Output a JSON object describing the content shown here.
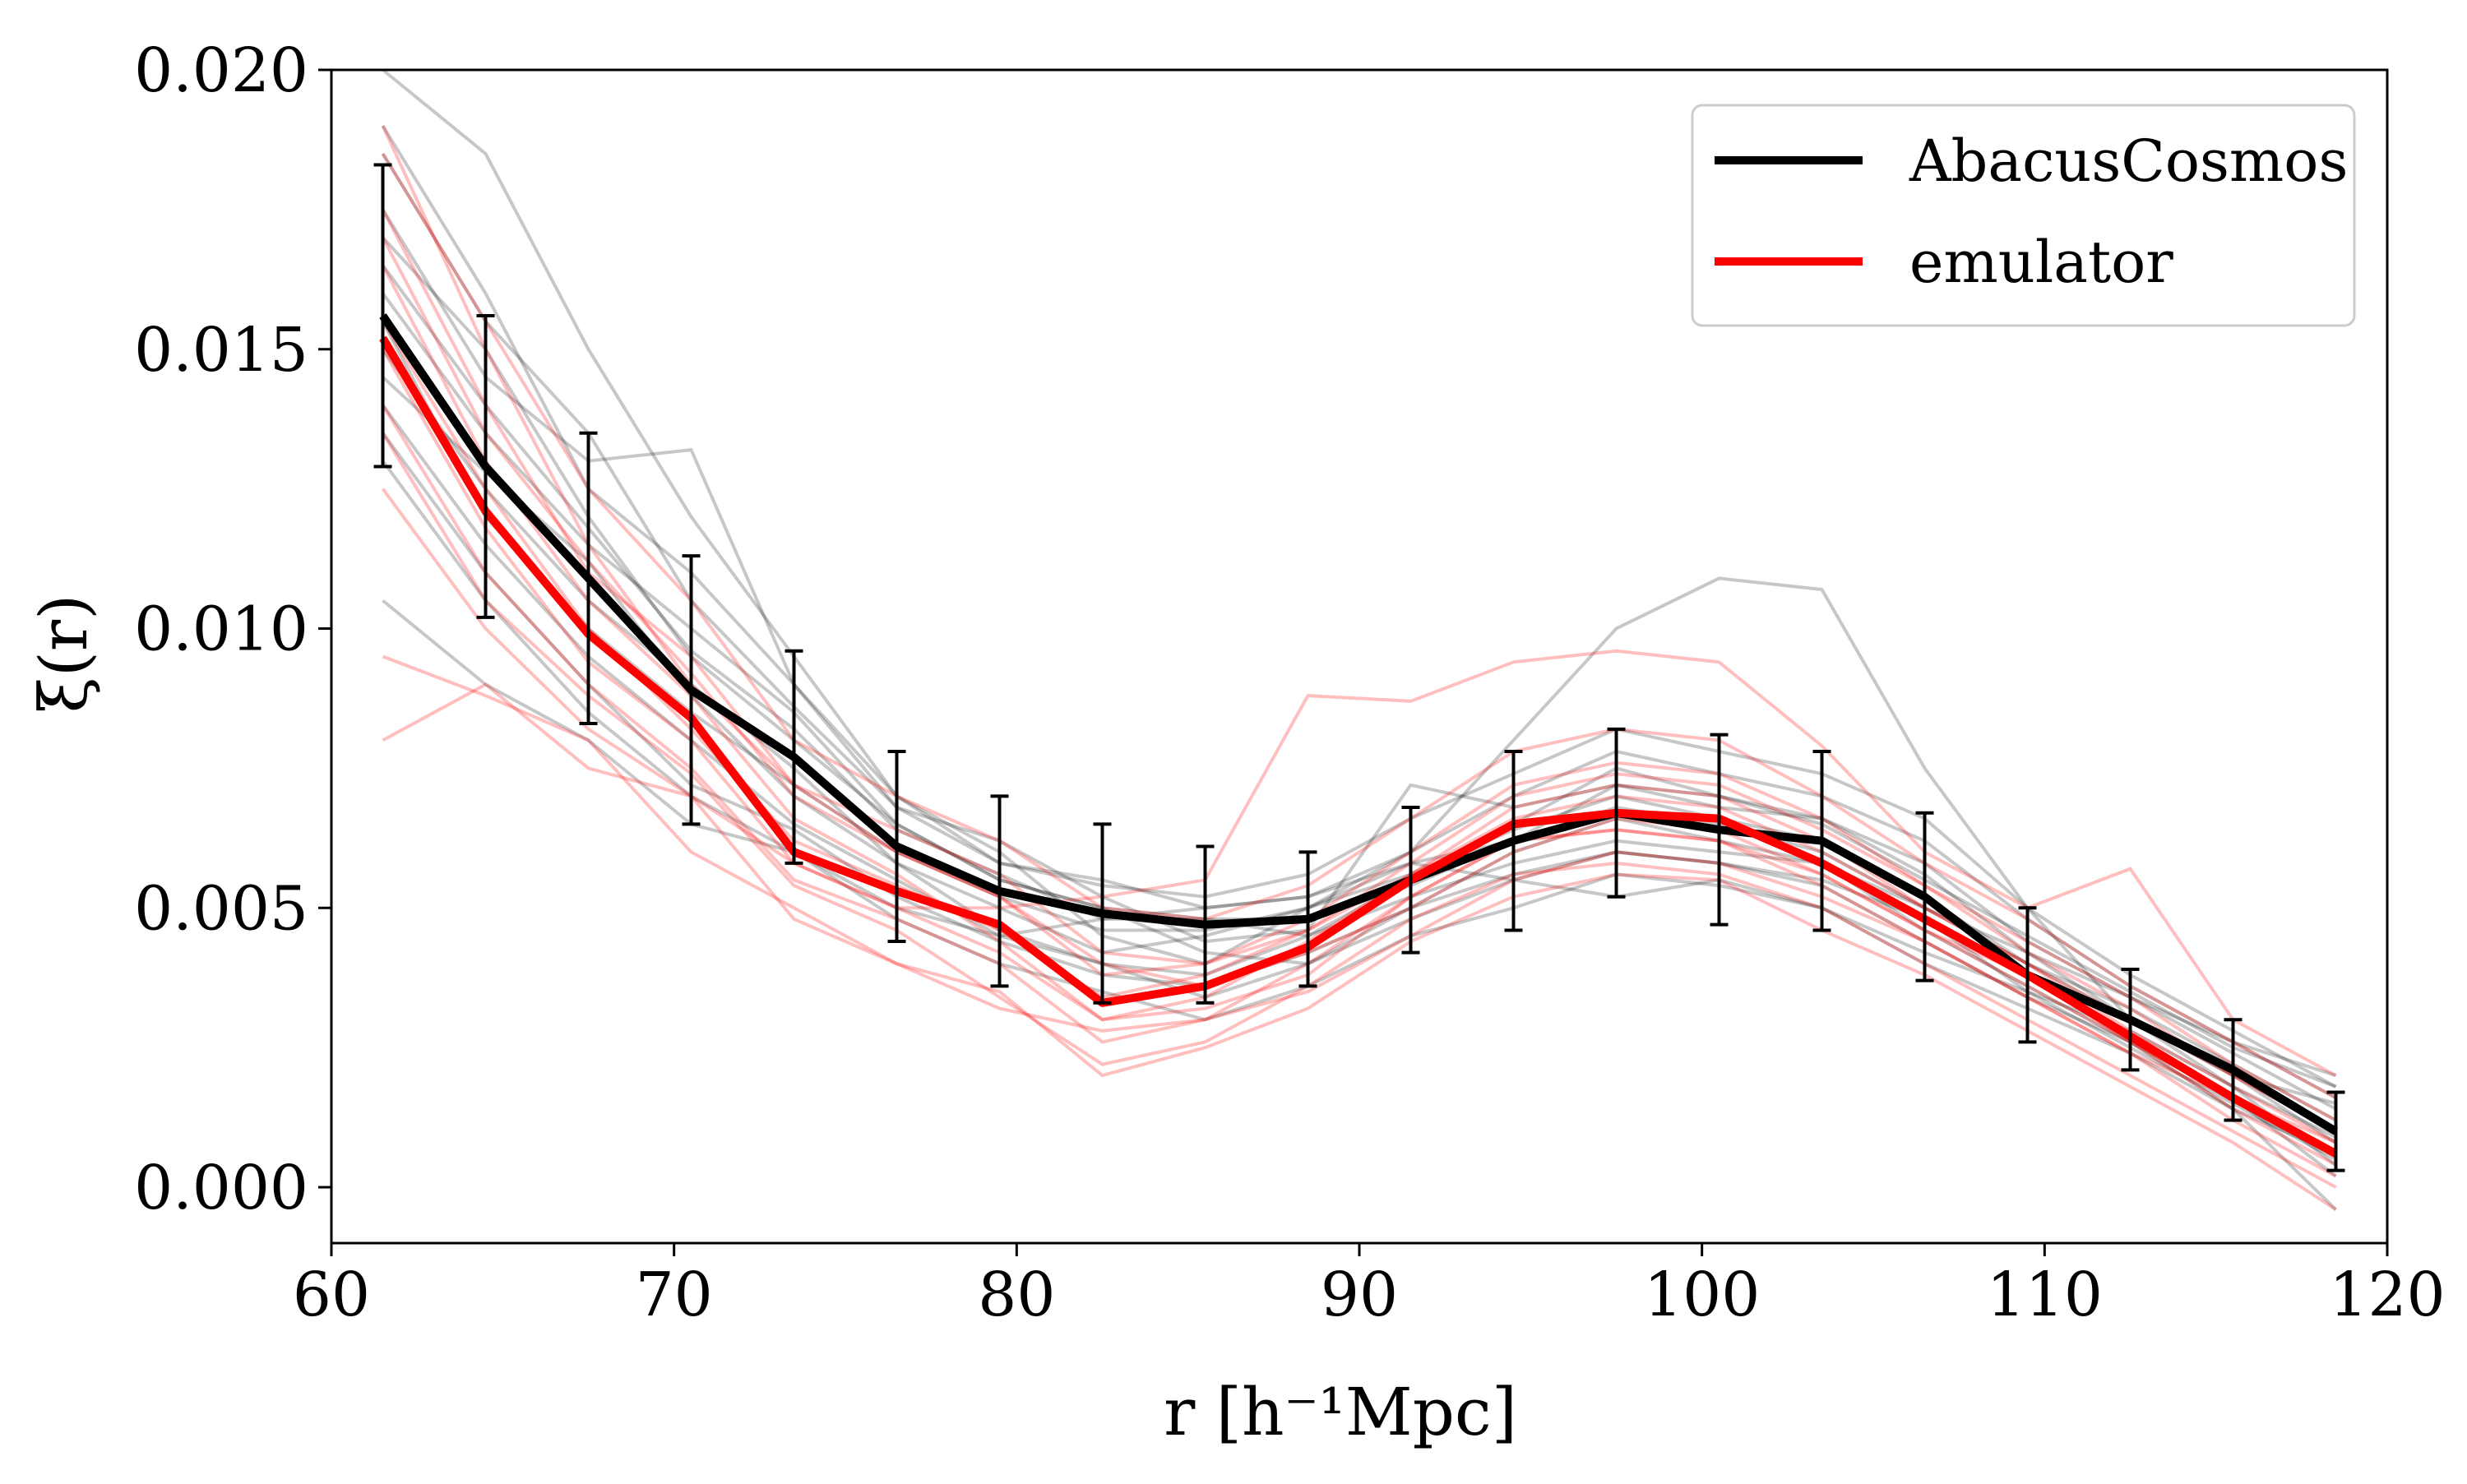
{
  "chart_data": {
    "type": "line",
    "xlabel": "r [h⁻¹Mpc]",
    "ylabel": "ξ(r)",
    "xlim": [
      60,
      120
    ],
    "ylim": [
      -0.001,
      0.02
    ],
    "x_ticks": [
      60,
      70,
      80,
      90,
      100,
      110,
      120
    ],
    "x_tick_labels": [
      "60",
      "70",
      "80",
      "90",
      "100",
      "110",
      "120"
    ],
    "y_ticks": [
      0.0,
      0.005,
      0.01,
      0.015,
      0.02
    ],
    "y_tick_labels": [
      "0.000",
      "0.005",
      "0.010",
      "0.015",
      "0.020"
    ],
    "legend_position": "top-right",
    "x": [
      61.5,
      64.5,
      67.5,
      70.5,
      73.5,
      76.5,
      79.5,
      82.5,
      85.5,
      88.5,
      91.5,
      94.5,
      97.5,
      100.5,
      103.5,
      106.5,
      109.5,
      112.5,
      115.5,
      118.5
    ],
    "series": [
      {
        "name": "AbacusCosmos",
        "color": "#000000",
        "values": [
          0.0156,
          0.0129,
          0.0109,
          0.0089,
          0.0077,
          0.0061,
          0.0053,
          0.0049,
          0.0047,
          0.0048,
          0.0055,
          0.0062,
          0.0067,
          0.0064,
          0.0062,
          0.0052,
          0.0038,
          0.003,
          0.0021,
          0.001
        ],
        "error": [
          0.0027,
          0.0027,
          0.0026,
          0.0024,
          0.0019,
          0.0017,
          0.0017,
          0.0016,
          0.0014,
          0.0012,
          0.0013,
          0.0016,
          0.0015,
          0.0017,
          0.0016,
          0.0015,
          0.0012,
          0.0009,
          0.0009,
          0.0007
        ]
      },
      {
        "name": "emulator",
        "color": "#ff0000",
        "values": [
          0.0152,
          0.0121,
          0.0099,
          0.0084,
          0.006,
          0.0053,
          0.0047,
          0.0033,
          0.0036,
          0.0043,
          0.0055,
          0.0065,
          0.0067,
          0.0066,
          0.0058,
          0.0048,
          0.0038,
          0.0027,
          0.0016,
          0.0006
        ]
      }
    ],
    "realizations": {
      "description": "individual faint curves",
      "gray_color": "#000000",
      "red_color": "#ff0000",
      "gray": [
        [
          0.02,
          0.0185,
          0.015,
          0.012,
          0.0095,
          0.007,
          0.006,
          0.0045,
          0.004,
          0.005,
          0.006,
          0.008,
          0.01,
          0.0109,
          0.0107,
          0.0075,
          0.005,
          0.003,
          0.002,
          0.0015
        ],
        [
          0.017,
          0.015,
          0.012,
          0.0095,
          0.008,
          0.0065,
          0.0055,
          0.005,
          0.0048,
          0.0045,
          0.0055,
          0.0065,
          0.0075,
          0.007,
          0.0065,
          0.0055,
          0.0045,
          0.0035,
          0.0025,
          0.0018
        ],
        [
          0.015,
          0.0125,
          0.0105,
          0.009,
          0.0075,
          0.0058,
          0.005,
          0.0042,
          0.0045,
          0.005,
          0.0058,
          0.0062,
          0.0068,
          0.0065,
          0.006,
          0.005,
          0.004,
          0.0032,
          0.0022,
          0.0012
        ],
        [
          0.016,
          0.0135,
          0.0115,
          0.01,
          0.0085,
          0.0065,
          0.0055,
          0.005,
          0.0042,
          0.004,
          0.0048,
          0.0055,
          0.006,
          0.0058,
          0.0055,
          0.0048,
          0.0035,
          0.0025,
          0.0015,
          0.0005
        ],
        [
          0.014,
          0.0115,
          0.0095,
          0.008,
          0.0065,
          0.0055,
          0.0045,
          0.004,
          0.0038,
          0.0045,
          0.0052,
          0.0058,
          0.0062,
          0.006,
          0.0058,
          0.005,
          0.0042,
          0.003,
          0.002,
          0.0008
        ],
        [
          0.0105,
          0.009,
          0.008,
          0.0065,
          0.006,
          0.005,
          0.0045,
          0.0048,
          0.005,
          0.0052,
          0.0058,
          0.0055,
          0.0052,
          0.0055,
          0.005,
          0.004,
          0.0032,
          0.0024,
          0.0014,
          0.0006
        ],
        [
          0.019,
          0.016,
          0.0125,
          0.011,
          0.009,
          0.007,
          0.0058,
          0.0055,
          0.005,
          0.0052,
          0.006,
          0.007,
          0.0078,
          0.0074,
          0.007,
          0.0062,
          0.0048,
          0.0036,
          0.0026,
          0.0016
        ],
        [
          0.013,
          0.0105,
          0.0085,
          0.007,
          0.006,
          0.0048,
          0.004,
          0.0035,
          0.003,
          0.0036,
          0.0045,
          0.005,
          0.0056,
          0.0054,
          0.005,
          0.0042,
          0.0035,
          0.0028,
          0.0018,
          0.0009
        ],
        [
          0.0175,
          0.0145,
          0.013,
          0.0132,
          0.009,
          0.0068,
          0.0062,
          0.0052,
          0.0044,
          0.0046,
          0.0072,
          0.0068,
          0.0072,
          0.0068,
          0.0066,
          0.0058,
          0.0044,
          0.0034,
          0.0024,
          0.0014
        ],
        [
          0.0155,
          0.012,
          0.01,
          0.0085,
          0.0072,
          0.006,
          0.0052,
          0.0046,
          0.0046,
          0.005,
          0.0056,
          0.0064,
          0.007,
          0.0066,
          0.0062,
          0.0052,
          0.004,
          0.003,
          0.0018,
          0.0004
        ],
        [
          0.0145,
          0.0128,
          0.0112,
          0.0088,
          0.007,
          0.0058,
          0.0046,
          0.004,
          0.0034,
          0.004,
          0.005,
          0.006,
          0.0066,
          0.0062,
          0.0058,
          0.0046,
          0.0036,
          0.0026,
          0.0016,
          0.0002
        ],
        [
          0.0165,
          0.014,
          0.0118,
          0.0096,
          0.0082,
          0.0064,
          0.0056,
          0.0048,
          0.0048,
          0.0048,
          0.0054,
          0.0062,
          0.0072,
          0.007,
          0.0066,
          0.0056,
          0.0042,
          0.0034,
          0.0026,
          0.002
        ],
        [
          0.0135,
          0.011,
          0.009,
          0.0072,
          0.0064,
          0.0052,
          0.0044,
          0.0038,
          0.0036,
          0.0042,
          0.005,
          0.0056,
          0.006,
          0.0058,
          0.0054,
          0.0044,
          0.0034,
          0.0026,
          0.0014,
          -0.0004
        ],
        [
          0.0185,
          0.0155,
          0.0135,
          0.0105,
          0.0086,
          0.0068,
          0.0058,
          0.0054,
          0.0052,
          0.0056,
          0.0066,
          0.0074,
          0.0082,
          0.0078,
          0.0074,
          0.0066,
          0.005,
          0.0038,
          0.0028,
          0.0018
        ]
      ],
      "red": [
        [
          0.008,
          0.009,
          0.0075,
          0.007,
          0.0058,
          0.005,
          0.005,
          0.0052,
          0.0055,
          0.0088,
          0.0087,
          0.0094,
          0.0096,
          0.0094,
          0.0079,
          0.006,
          0.005,
          0.0057,
          0.003,
          0.002
        ],
        [
          0.0095,
          0.0088,
          0.008,
          0.006,
          0.005,
          0.004,
          0.0032,
          0.0028,
          0.003,
          0.0035,
          0.0045,
          0.0055,
          0.006,
          0.0058,
          0.0052,
          0.0044,
          0.0034,
          0.0024,
          0.0016,
          0.0008
        ],
        [
          0.019,
          0.015,
          0.0115,
          0.009,
          0.0072,
          0.006,
          0.0052,
          0.004,
          0.0036,
          0.0042,
          0.005,
          0.006,
          0.0066,
          0.0064,
          0.0056,
          0.0046,
          0.0038,
          0.0026,
          0.0016,
          0.0006
        ],
        [
          0.0165,
          0.013,
          0.0105,
          0.0088,
          0.0066,
          0.0056,
          0.0044,
          0.003,
          0.0034,
          0.0044,
          0.0056,
          0.0068,
          0.0072,
          0.007,
          0.0062,
          0.005,
          0.004,
          0.003,
          0.002,
          0.001
        ],
        [
          0.014,
          0.011,
          0.009,
          0.0075,
          0.0055,
          0.0048,
          0.004,
          0.0026,
          0.003,
          0.004,
          0.0052,
          0.0062,
          0.0064,
          0.0062,
          0.0054,
          0.0044,
          0.0034,
          0.0024,
          0.0012,
          0.0002
        ],
        [
          0.0175,
          0.014,
          0.011,
          0.0095,
          0.0072,
          0.0064,
          0.0056,
          0.0042,
          0.004,
          0.0046,
          0.0058,
          0.007,
          0.0074,
          0.0072,
          0.0064,
          0.0054,
          0.0044,
          0.0034,
          0.0022,
          0.0012
        ],
        [
          0.0125,
          0.01,
          0.0082,
          0.007,
          0.0048,
          0.004,
          0.0035,
          0.002,
          0.0025,
          0.0032,
          0.0044,
          0.0052,
          0.0056,
          0.0055,
          0.0046,
          0.0038,
          0.0028,
          0.0018,
          0.0008,
          -0.0004
        ],
        [
          0.0155,
          0.0125,
          0.01,
          0.0082,
          0.0062,
          0.0054,
          0.0046,
          0.0034,
          0.0038,
          0.0046,
          0.0056,
          0.0066,
          0.007,
          0.0068,
          0.006,
          0.005,
          0.004,
          0.0028,
          0.0018,
          0.0008
        ],
        [
          0.0185,
          0.0155,
          0.0125,
          0.0105,
          0.008,
          0.007,
          0.0062,
          0.005,
          0.0048,
          0.0054,
          0.0066,
          0.0078,
          0.0082,
          0.008,
          0.007,
          0.0058,
          0.0048,
          0.0036,
          0.0026,
          0.0016
        ],
        [
          0.0135,
          0.0105,
          0.0088,
          0.0074,
          0.0054,
          0.0046,
          0.0034,
          0.0022,
          0.0026,
          0.0036,
          0.0048,
          0.0056,
          0.0058,
          0.0056,
          0.005,
          0.004,
          0.003,
          0.002,
          0.001,
          0.0
        ],
        [
          0.017,
          0.0135,
          0.0112,
          0.0092,
          0.007,
          0.006,
          0.0052,
          0.0038,
          0.004,
          0.0048,
          0.006,
          0.0072,
          0.0076,
          0.0074,
          0.0066,
          0.0054,
          0.0042,
          0.0032,
          0.002,
          0.001
        ],
        [
          0.015,
          0.0118,
          0.0094,
          0.008,
          0.0058,
          0.005,
          0.0042,
          0.003,
          0.0032,
          0.0038,
          0.0052,
          0.0062,
          0.0064,
          0.0062,
          0.0056,
          0.0046,
          0.0036,
          0.0026,
          0.0014,
          0.0004
        ]
      ]
    }
  }
}
